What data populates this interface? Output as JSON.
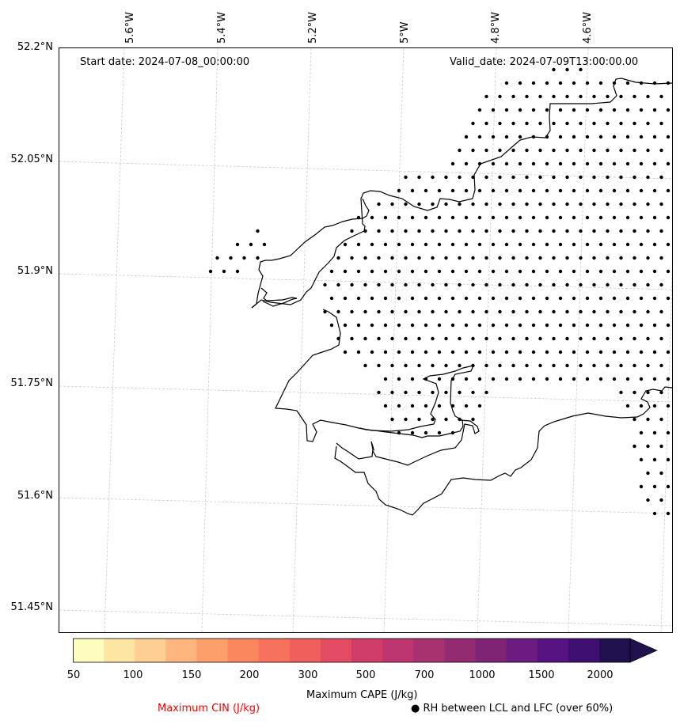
{
  "header": {
    "start_date": "Start date: 2024-07-08_00:00:00",
    "valid_date": "Valid_date: 2024-07-09T13:00:00.00"
  },
  "axes": {
    "longitude_labels": [
      "5.6°W",
      "5.4°W",
      "5.2°W",
      "5°W",
      "4.8°W",
      "4.6°W"
    ],
    "latitude_labels": [
      "52.2°N",
      "52.05°N",
      "51.9°N",
      "51.75°N",
      "51.6°N",
      "51.45°N"
    ]
  },
  "colorbar": {
    "title": "Maximum CAPE (J/kg)",
    "tick_labels": [
      "50",
      "100",
      "150",
      "200",
      "300",
      "500",
      "700",
      "1000",
      "1500",
      "2000"
    ],
    "colors": [
      "#fefdbf",
      "#fde5a3",
      "#fecf92",
      "#feb67e",
      "#fc9f6b",
      "#fb875e",
      "#f7725c",
      "#f05f5c",
      "#e24b62",
      "#d13d69",
      "#bd366f",
      "#a8326f",
      "#932b72",
      "#7f2474",
      "#6a1c80",
      "#561281",
      "#3f0f72",
      "#21114e"
    ],
    "arrow_color": "#21114e"
  },
  "legend": {
    "cin_label": "Maximum CIN (J/kg)",
    "cin_color": "#ff0000",
    "rh_label": "● RH between LCL and LFC (over 60%)"
  }
}
